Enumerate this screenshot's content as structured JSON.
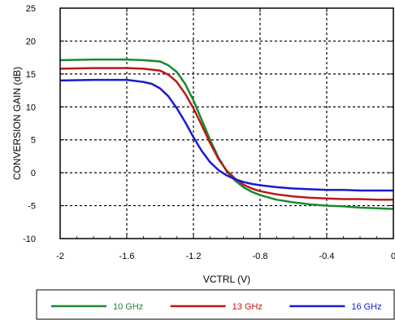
{
  "chart_data": {
    "type": "line",
    "xlabel": "VCTRL (V)",
    "ylabel": "CONVERSION GAIN (dB)",
    "xlim": [
      -2,
      0
    ],
    "ylim": [
      -10,
      25
    ],
    "x_ticks": [
      "-2",
      "-1.6",
      "-1.2",
      "-0.8",
      "-0.4",
      "0"
    ],
    "y_ticks": [
      "-10",
      "-5",
      "0",
      "5",
      "10",
      "15",
      "20",
      "25"
    ],
    "grid": true,
    "legend_position": "bottom",
    "series": [
      {
        "name": "10 GHz",
        "color": "#1a8a2e",
        "x": [
          -2,
          -1.8,
          -1.6,
          -1.5,
          -1.4,
          -1.35,
          -1.3,
          -1.25,
          -1.2,
          -1.15,
          -1.1,
          -1.05,
          -1.0,
          -0.95,
          -0.9,
          -0.85,
          -0.8,
          -0.7,
          -0.6,
          -0.5,
          -0.4,
          -0.3,
          -0.2,
          -0.1,
          0
        ],
        "y": [
          17.1,
          17.2,
          17.2,
          17.1,
          16.9,
          16.3,
          15.3,
          13.5,
          11.0,
          8.0,
          5.0,
          2.3,
          0.2,
          -1.2,
          -2.2,
          -2.9,
          -3.4,
          -4.1,
          -4.5,
          -4.8,
          -5.0,
          -5.1,
          -5.3,
          -5.4,
          -5.5
        ]
      },
      {
        "name": "13 GHz",
        "color": "#b81a1a",
        "x": [
          -2,
          -1.8,
          -1.6,
          -1.5,
          -1.4,
          -1.35,
          -1.3,
          -1.25,
          -1.2,
          -1.15,
          -1.1,
          -1.05,
          -1.0,
          -0.95,
          -0.9,
          -0.85,
          -0.8,
          -0.7,
          -0.6,
          -0.5,
          -0.4,
          -0.3,
          -0.2,
          -0.1,
          0
        ],
        "y": [
          15.8,
          15.9,
          15.9,
          15.8,
          15.5,
          14.9,
          13.8,
          12.0,
          9.8,
          7.2,
          4.5,
          2.1,
          0.3,
          -0.9,
          -1.8,
          -2.4,
          -2.8,
          -3.3,
          -3.6,
          -3.8,
          -3.9,
          -4.0,
          -4.0,
          -4.1,
          -4.1
        ]
      },
      {
        "name": "16 GHz",
        "color": "#1a1ad0",
        "x": [
          -2,
          -1.8,
          -1.6,
          -1.5,
          -1.45,
          -1.4,
          -1.35,
          -1.3,
          -1.25,
          -1.2,
          -1.15,
          -1.1,
          -1.05,
          -1.0,
          -0.95,
          -0.9,
          -0.85,
          -0.8,
          -0.7,
          -0.6,
          -0.5,
          -0.4,
          -0.3,
          -0.2,
          -0.1,
          0
        ],
        "y": [
          14.0,
          14.1,
          14.1,
          13.8,
          13.5,
          12.8,
          11.6,
          9.8,
          7.7,
          5.4,
          3.3,
          1.6,
          0.4,
          -0.4,
          -1.0,
          -1.4,
          -1.7,
          -1.9,
          -2.2,
          -2.4,
          -2.5,
          -2.6,
          -2.6,
          -2.7,
          -2.7,
          -2.7
        ]
      }
    ]
  }
}
